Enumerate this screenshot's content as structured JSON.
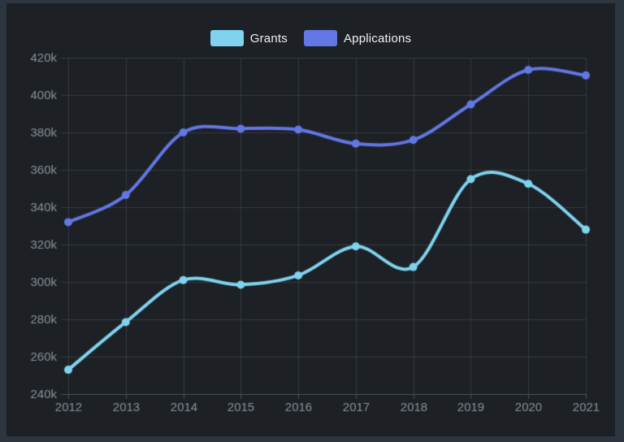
{
  "chart_data": {
    "type": "line",
    "title": "",
    "x": [
      2012,
      2013,
      2014,
      2015,
      2016,
      2017,
      2018,
      2019,
      2020,
      2021
    ],
    "x_tick_labels": [
      "2012",
      "2013",
      "2014",
      "2015",
      "2016",
      "2017",
      "2018",
      "2019",
      "2020",
      "2021"
    ],
    "y_ticks": [
      240000,
      260000,
      280000,
      300000,
      320000,
      340000,
      360000,
      380000,
      400000,
      420000
    ],
    "y_tick_labels": [
      "240k",
      "260k",
      "280k",
      "300k",
      "320k",
      "340k",
      "360k",
      "380k",
      "400k",
      "420k"
    ],
    "ylim": [
      240000,
      420000
    ],
    "grid": true,
    "legend_position": "top",
    "series": [
      {
        "name": "Grants",
        "color": "#7fd3ee",
        "values": [
          253000,
          278500,
          301000,
          298500,
          303500,
          319000,
          308000,
          355000,
          352500,
          328000
        ]
      },
      {
        "name": "Applications",
        "color": "#6377e4",
        "values": [
          332000,
          346500,
          380000,
          382000,
          381500,
          374000,
          376000,
          395000,
          413500,
          410500
        ]
      }
    ]
  },
  "theme": {
    "frame_bg": "#2d3540",
    "panel_bg": "#1d2126",
    "grid_color": "#343a41",
    "axis_color": "#4a525a",
    "tick_label_color": "#8a9199",
    "legend_text_color": "#eef1f3"
  }
}
